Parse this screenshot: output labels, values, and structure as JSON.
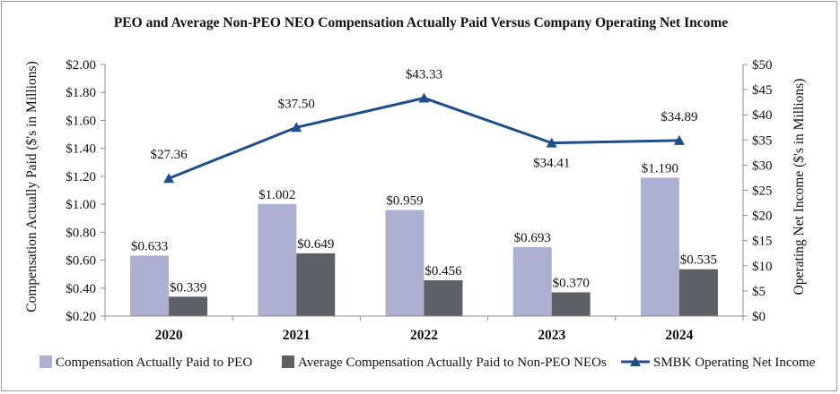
{
  "chart_data": {
    "type": "bar+line",
    "title": "PEO and Average Non-PEO NEO Compensation Actually Paid Versus Company Operating Net Income",
    "categories": [
      "2020",
      "2021",
      "2022",
      "2023",
      "2024"
    ],
    "ylabel_left": "Compensation Actually Paid ($'s in Millions)",
    "ylabel_right": "Operating Net Income ($'s in Millions)",
    "ylim_left": [
      0.2,
      2.0
    ],
    "ylim_right": [
      0,
      50
    ],
    "yticks_left": [
      "$0.20",
      "$0.40",
      "$0.60",
      "$0.80",
      "$1.00",
      "$1.20",
      "$1.40",
      "$1.60",
      "$1.80",
      "$2.00"
    ],
    "yticks_right": [
      "$0",
      "$5",
      "$10",
      "$15",
      "$20",
      "$25",
      "$30",
      "$35",
      "$40",
      "$45",
      "$50"
    ],
    "series": [
      {
        "name": "Compensation Actually Paid to PEO",
        "kind": "bar",
        "axis": "left",
        "color": "#aeb0d2",
        "values": [
          0.633,
          1.002,
          0.959,
          0.693,
          1.19
        ],
        "labels": [
          "$0.633",
          "$1.002",
          "$0.959",
          "$0.693",
          "$1.190"
        ]
      },
      {
        "name": "Average Compensation Actually Paid to Non-PEO NEOs",
        "kind": "bar",
        "axis": "left",
        "color": "#5d6166",
        "values": [
          0.339,
          0.649,
          0.456,
          0.37,
          0.535
        ],
        "labels": [
          "$0.339",
          "$0.649",
          "$0.456",
          "$0.370",
          "$0.535"
        ]
      },
      {
        "name": "SMBK Operating Net Income",
        "kind": "line",
        "axis": "right",
        "color": "#1f4e8c",
        "values": [
          27.36,
          37.5,
          43.33,
          34.41,
          34.89
        ],
        "labels": [
          "$27.36",
          "$37.50",
          "$43.33",
          "$34.41",
          "$34.89"
        ]
      }
    ],
    "legend_position": "bottom"
  }
}
